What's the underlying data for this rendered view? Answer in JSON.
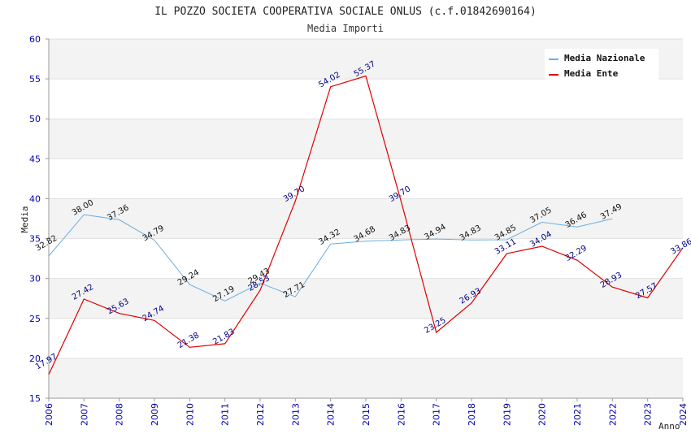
{
  "chart_data": {
    "type": "line",
    "title": "IL POZZO SOCIETA COOPERATIVA SOCIALE ONLUS (c.f.01842690164)",
    "subtitle": "Media Importi",
    "xlabel": "Anno",
    "ylabel": "Media",
    "ylim": [
      15,
      60
    ],
    "yticks": [
      "15",
      "20",
      "25",
      "30",
      "35",
      "40",
      "45",
      "50",
      "55",
      "60"
    ],
    "x": [
      "2006",
      "2007",
      "2008",
      "2009",
      "2010",
      "2011",
      "2012",
      "2013",
      "2014",
      "2015",
      "2016",
      "2017",
      "2018",
      "2019",
      "2020",
      "2021",
      "2022",
      "2023",
      "2024"
    ],
    "grid": true,
    "legend_position": "top-right",
    "series": [
      {
        "name": "Media Nazionale",
        "color": "#6aaee0",
        "values": [
          32.82,
          38.0,
          37.36,
          34.79,
          29.24,
          27.19,
          29.43,
          27.71,
          34.32,
          34.68,
          34.83,
          34.94,
          34.83,
          34.85,
          37.05,
          36.46,
          37.49,
          null,
          null
        ],
        "labels": [
          "32.82",
          "38.00",
          "37.36",
          "34.79",
          "29.24",
          "27.19",
          "29.43",
          "27.71",
          "34.32",
          "34.68",
          "34.83",
          "34.94",
          "34.83",
          "34.85",
          "37.05",
          "36.46",
          "37.49",
          null,
          null
        ]
      },
      {
        "name": "Media Ente",
        "color": "#dd0000",
        "values": [
          17.97,
          27.42,
          25.63,
          24.74,
          21.38,
          21.83,
          28.53,
          39.7,
          54.02,
          55.37,
          39.7,
          23.25,
          26.93,
          33.11,
          34.04,
          32.29,
          28.93,
          27.57,
          33.86
        ],
        "labels": [
          "17.97",
          "27.42",
          "25.63",
          "24.74",
          "21.38",
          "21.83",
          "28.53",
          "39.70",
          "54.02",
          "55.37",
          "39.70",
          "23.25",
          "26.93",
          "33.11",
          "34.04",
          "32.29",
          "28.93",
          "27.57",
          "33.86"
        ]
      }
    ]
  }
}
